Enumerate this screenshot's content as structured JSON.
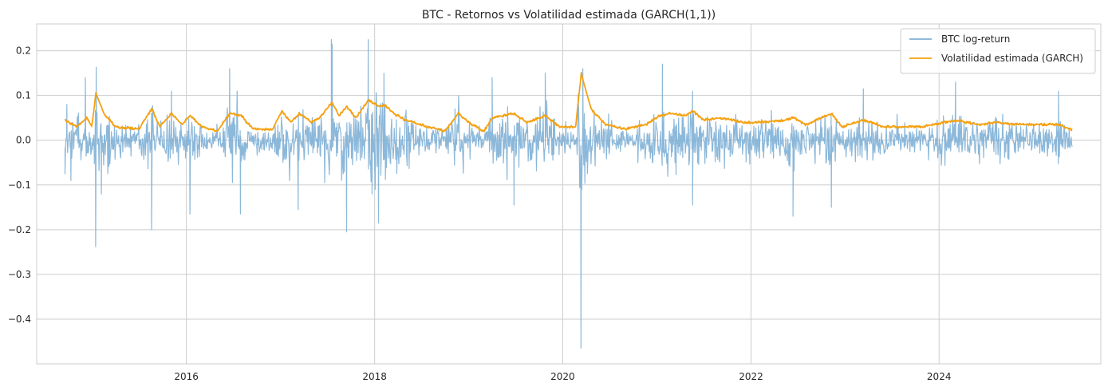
{
  "chart_data": {
    "type": "line",
    "title": "BTC - Retornos vs Volatilidad estimada (GARCH(1,1))",
    "xlabel": "",
    "ylabel": "",
    "x_ticks": [
      "2016",
      "2018",
      "2020",
      "2022",
      "2024"
    ],
    "y_ticks": [
      "0.2",
      "0.1",
      "0.0",
      "−0.1",
      "−0.2",
      "−0.3",
      "−0.4"
    ],
    "xlim": [
      "2014-05-30",
      "2025-09-20"
    ],
    "ylim": [
      -0.5,
      0.26
    ],
    "grid": true,
    "legend_position": "top-right",
    "series": [
      {
        "name": "BTC log-return",
        "color": "#7fb0d6",
        "kind": "daily log-return (dense)",
        "points": [
          [
            "2014-09-17",
            -0.075
          ],
          [
            "2014-09-24",
            0.08
          ],
          [
            "2014-10-10",
            -0.09
          ],
          [
            "2014-12-05",
            0.14
          ],
          [
            "2015-01-14",
            -0.238
          ],
          [
            "2015-01-16",
            0.163
          ],
          [
            "2015-02-05",
            -0.12
          ],
          [
            "2015-08-19",
            -0.2
          ],
          [
            "2015-11-04",
            0.11
          ],
          [
            "2016-01-15",
            -0.165
          ],
          [
            "2016-06-17",
            0.16
          ],
          [
            "2016-07-29",
            -0.165
          ],
          [
            "2017-03-10",
            -0.155
          ],
          [
            "2017-07-17",
            0.225
          ],
          [
            "2017-07-20",
            0.215
          ],
          [
            "2017-09-14",
            -0.205
          ],
          [
            "2017-12-07",
            0.225
          ],
          [
            "2017-12-22",
            -0.12
          ],
          [
            "2018-01-16",
            -0.185
          ],
          [
            "2018-02-06",
            0.15
          ],
          [
            "2019-04-02",
            0.14
          ],
          [
            "2019-06-26",
            -0.145
          ],
          [
            "2019-10-25",
            0.15
          ],
          [
            "2020-03-12",
            -0.465
          ],
          [
            "2020-03-19",
            0.16
          ],
          [
            "2021-01-22",
            0.17
          ],
          [
            "2021-05-19",
            -0.145
          ],
          [
            "2022-06-13",
            -0.17
          ],
          [
            "2022-11-09",
            -0.15
          ],
          [
            "2023-03-13",
            0.115
          ],
          [
            "2024-03-05",
            0.13
          ],
          [
            "2025-04-09",
            0.11
          ]
        ]
      },
      {
        "name": "Volatilidad estimada (GARCH)",
        "color": "#f5a00f",
        "points": [
          [
            "2014-09-17",
            0.045
          ],
          [
            "2014-11-01",
            0.03
          ],
          [
            "2014-12-10",
            0.05
          ],
          [
            "2014-12-30",
            0.03
          ],
          [
            "2015-01-15",
            0.105
          ],
          [
            "2015-02-15",
            0.06
          ],
          [
            "2015-04-01",
            0.03
          ],
          [
            "2015-07-01",
            0.025
          ],
          [
            "2015-08-20",
            0.07
          ],
          [
            "2015-09-20",
            0.03
          ],
          [
            "2015-11-05",
            0.06
          ],
          [
            "2015-12-15",
            0.035
          ],
          [
            "2016-01-16",
            0.055
          ],
          [
            "2016-03-01",
            0.03
          ],
          [
            "2016-05-01",
            0.02
          ],
          [
            "2016-06-18",
            0.06
          ],
          [
            "2016-08-02",
            0.055
          ],
          [
            "2016-09-15",
            0.025
          ],
          [
            "2016-12-01",
            0.025
          ],
          [
            "2017-01-05",
            0.065
          ],
          [
            "2017-02-10",
            0.04
          ],
          [
            "2017-03-15",
            0.06
          ],
          [
            "2017-05-01",
            0.04
          ],
          [
            "2017-06-01",
            0.05
          ],
          [
            "2017-07-20",
            0.085
          ],
          [
            "2017-08-15",
            0.055
          ],
          [
            "2017-09-15",
            0.075
          ],
          [
            "2017-10-20",
            0.05
          ],
          [
            "2017-12-08",
            0.09
          ],
          [
            "2018-01-20",
            0.075
          ],
          [
            "2018-02-08",
            0.08
          ],
          [
            "2018-03-15",
            0.06
          ],
          [
            "2018-05-01",
            0.045
          ],
          [
            "2018-07-01",
            0.035
          ],
          [
            "2018-10-01",
            0.02
          ],
          [
            "2018-11-22",
            0.06
          ],
          [
            "2019-01-01",
            0.04
          ],
          [
            "2019-03-01",
            0.02
          ],
          [
            "2019-04-03",
            0.05
          ],
          [
            "2019-06-27",
            0.06
          ],
          [
            "2019-08-15",
            0.04
          ],
          [
            "2019-10-26",
            0.055
          ],
          [
            "2019-12-20",
            0.03
          ],
          [
            "2020-02-20",
            0.03
          ],
          [
            "2020-03-13",
            0.15
          ],
          [
            "2020-04-20",
            0.07
          ],
          [
            "2020-06-15",
            0.035
          ],
          [
            "2020-09-01",
            0.025
          ],
          [
            "2020-11-20",
            0.035
          ],
          [
            "2021-01-11",
            0.055
          ],
          [
            "2021-02-23",
            0.06
          ],
          [
            "2021-04-20",
            0.055
          ],
          [
            "2021-05-20",
            0.065
          ],
          [
            "2021-07-01",
            0.045
          ],
          [
            "2021-09-08",
            0.05
          ],
          [
            "2021-12-05",
            0.04
          ],
          [
            "2022-02-01",
            0.04
          ],
          [
            "2022-05-10",
            0.045
          ],
          [
            "2022-06-15",
            0.05
          ],
          [
            "2022-08-01",
            0.035
          ],
          [
            "2022-11-10",
            0.06
          ],
          [
            "2022-12-20",
            0.03
          ],
          [
            "2023-03-14",
            0.045
          ],
          [
            "2023-06-01",
            0.03
          ],
          [
            "2023-10-25",
            0.03
          ],
          [
            "2024-03-06",
            0.045
          ],
          [
            "2024-06-01",
            0.035
          ],
          [
            "2024-08-06",
            0.04
          ],
          [
            "2024-11-15",
            0.035
          ],
          [
            "2025-02-03",
            0.035
          ],
          [
            "2025-04-10",
            0.035
          ],
          [
            "2025-06-01",
            0.023
          ]
        ]
      }
    ]
  }
}
